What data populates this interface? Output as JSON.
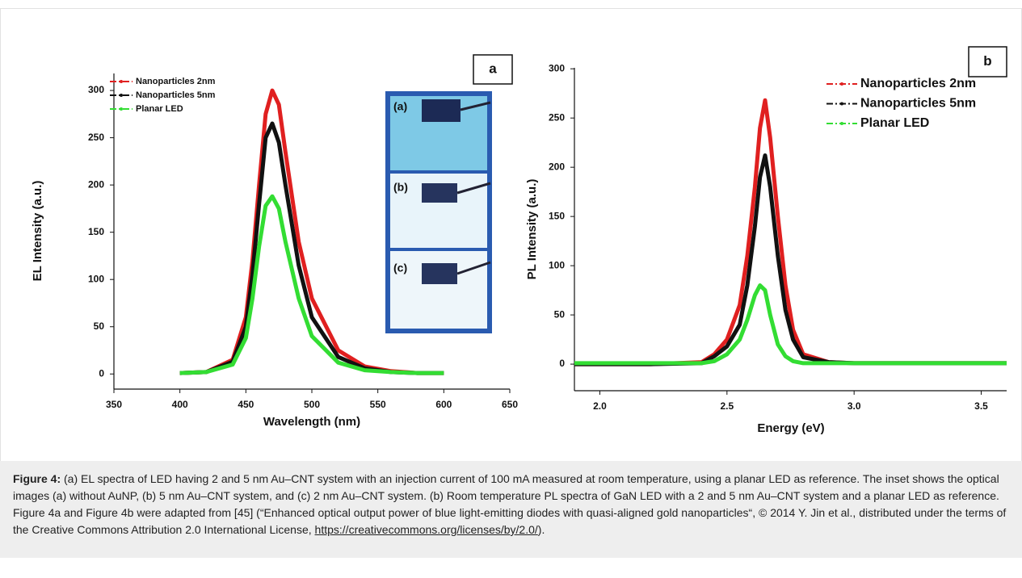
{
  "chart_data": [
    {
      "type": "line",
      "panel_label": "a",
      "x_label": "Wavelength (nm)",
      "y_label": "EL Intensity (a.u.)",
      "x": [
        400,
        420,
        440,
        450,
        455,
        460,
        465,
        470,
        475,
        480,
        490,
        500,
        520,
        540,
        560,
        580,
        600
      ],
      "series": [
        {
          "name": "Nanoparticles 2nm",
          "color": "#e02020",
          "values": [
            1,
            2,
            15,
            60,
            120,
            200,
            275,
            300,
            285,
            235,
            140,
            80,
            25,
            8,
            3,
            1,
            1
          ]
        },
        {
          "name": "Nanoparticles 5nm",
          "color": "#111111",
          "values": [
            1,
            2,
            13,
            50,
            105,
            180,
            250,
            265,
            245,
            200,
            115,
            60,
            18,
            6,
            2,
            1,
            1
          ]
        },
        {
          "name": "Planar LED",
          "color": "#33dd33",
          "values": [
            1,
            2,
            10,
            38,
            80,
            135,
            178,
            188,
            175,
            140,
            80,
            40,
            12,
            4,
            2,
            1,
            1
          ]
        }
      ],
      "xlim": [
        350,
        650
      ],
      "xticks": [
        350,
        400,
        450,
        500,
        550,
        600,
        650
      ],
      "ylim": [
        -16,
        318
      ],
      "yticks": [
        0,
        50,
        100,
        150,
        200,
        250,
        300
      ],
      "inset_labels": [
        "(a)",
        "(b)",
        "(c)"
      ]
    },
    {
      "type": "line",
      "panel_label": "b",
      "x_label": "Energy (eV)",
      "y_label": "PL Intensity (a.u.)",
      "x": [
        1.9,
        2.0,
        2.2,
        2.4,
        2.45,
        2.5,
        2.55,
        2.58,
        2.61,
        2.63,
        2.65,
        2.67,
        2.7,
        2.73,
        2.76,
        2.8,
        2.9,
        3.0,
        3.2,
        3.4,
        3.6
      ],
      "series": [
        {
          "name": "Nanoparticles 2nm",
          "color": "#e02020",
          "values": [
            0,
            0,
            0,
            2,
            10,
            25,
            60,
            110,
            180,
            240,
            268,
            230,
            150,
            80,
            35,
            10,
            2,
            1,
            1,
            1,
            1
          ]
        },
        {
          "name": "Nanoparticles 5nm",
          "color": "#111111",
          "values": [
            0,
            0,
            0,
            1,
            8,
            18,
            40,
            80,
            140,
            190,
            212,
            180,
            110,
            55,
            25,
            7,
            2,
            1,
            1,
            1,
            1
          ]
        },
        {
          "name": "Planar LED",
          "color": "#33dd33",
          "values": [
            1,
            1,
            1,
            1,
            3,
            10,
            25,
            45,
            70,
            80,
            75,
            50,
            20,
            8,
            3,
            1,
            1,
            1,
            1,
            1,
            1
          ]
        }
      ],
      "xlim": [
        1.9,
        3.6
      ],
      "xticks": [
        {
          "value": 2,
          "label": "2.0"
        },
        2.5,
        {
          "value": 3,
          "label": "3.0"
        },
        3.5
      ],
      "ylim": [
        -27,
        301
      ],
      "yticks": [
        0,
        50,
        100,
        150,
        200,
        250,
        300
      ]
    }
  ],
  "caption": {
    "label": "Figure 4:",
    "text": " (a) EL spectra of LED having 2 and 5 nm Au–CNT system with an injection current of 100 mA measured at room temperature, using a planar LED as reference. The inset shows the optical images (a) without AuNP, (b) 5 nm Au–CNT system, and (c) 2 nm Au–CNT system. (b) Room temperature PL spectra of GaN LED with a 2 and 5 nm Au–CNT system and a planar LED as reference. Figure 4a and Figure 4b were adapted from [45] (“Enhanced optical output power of blue light-emitting diodes with quasi-aligned gold nanoparticles“, © 2014 Y. Jin et al., distributed under the terms of the Creative Commons Attribution 2.0 International License, ",
    "link": "https://creativecommons.org/licenses/by/2.0/",
    "tail": ")."
  }
}
